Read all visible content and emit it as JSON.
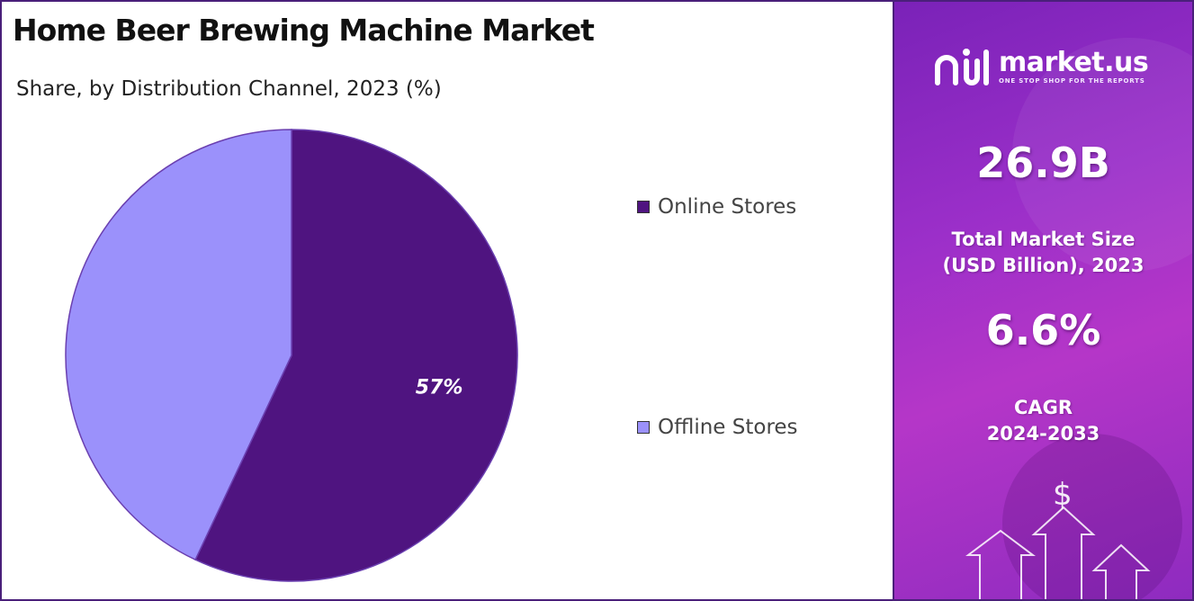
{
  "title": "Home Beer Brewing Machine Market",
  "subtitle": "Share, by Distribution Channel, 2023 (%)",
  "colors": {
    "online": "#4f1480",
    "offline": "#9b91fb",
    "panel": "#9b2fc9"
  },
  "brand": {
    "name": "market.us",
    "tagline": "ONE STOP SHOP FOR THE REPORTS",
    "icon": "market-us-logo-icon"
  },
  "stats": {
    "market_size_value": "26.9B",
    "market_size_label_line1": "Total Market Size",
    "market_size_label_line2": "(USD Billion), 2023",
    "cagr_value": "6.6%",
    "cagr_label_line1": "CAGR",
    "cagr_label_line2": "2024-2033"
  },
  "decor": {
    "currency_symbol": "$",
    "icons": [
      "dollar-icon",
      "arrow-up-icon"
    ]
  },
  "chart_data": {
    "type": "pie",
    "title": "Home Beer Brewing Machine Market",
    "subtitle": "Share, by Distribution Channel, 2023 (%)",
    "categories": [
      "Online Stores",
      "Offline Stores"
    ],
    "values": [
      57,
      43
    ],
    "data_labels": [
      "57%",
      ""
    ],
    "colors": [
      "#4f1480",
      "#9b91fb"
    ],
    "legend_position": "right"
  }
}
